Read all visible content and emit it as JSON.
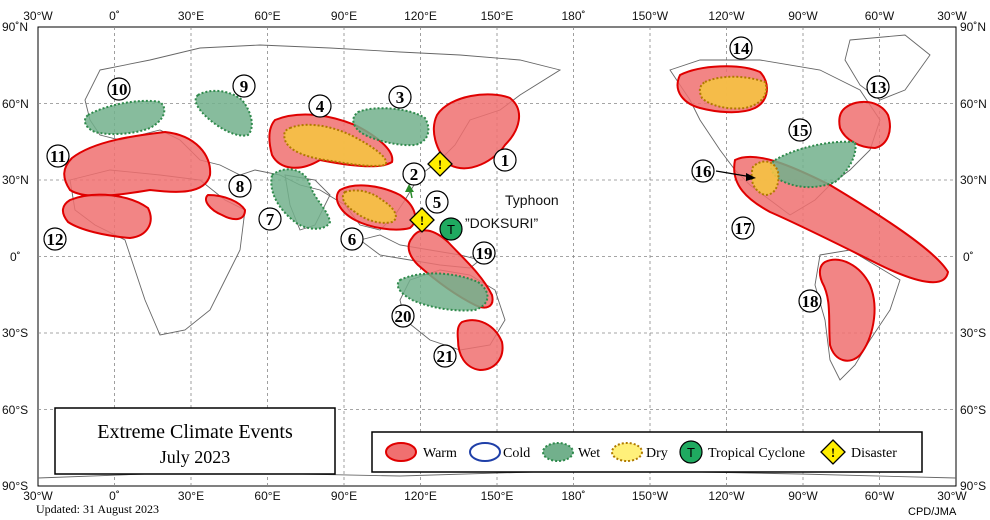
{
  "title": "Extreme Climate Events",
  "subtitle": "July 2023",
  "updated": "Updated: 31 August 2023",
  "credit": "CPD/JMA",
  "typhoon": {
    "label": "Typhoon",
    "name": "”DOKSURI”"
  },
  "legend": {
    "warm": "Warm",
    "cold": "Cold",
    "wet": "Wet",
    "dry": "Dry",
    "tc": "Tropical  Cyclone",
    "disaster": "Disaster",
    "tc_symbol": "T",
    "disaster_symbol": "!"
  },
  "lon_labels": [
    "30°W",
    "0˚",
    "30°E",
    "60°E",
    "90°E",
    "120°E",
    "150°E",
    "180˚",
    "150°W",
    "120°W",
    "90°W",
    "60°W",
    "30°W"
  ],
  "lat_labels": [
    "90˚N",
    "60°N",
    "30°N",
    "0˚",
    "30°S",
    "60°S",
    "90°S"
  ],
  "events": [
    "1",
    "2",
    "3",
    "4",
    "5",
    "6",
    "7",
    "8",
    "9",
    "10",
    "11",
    "12",
    "13",
    "14",
    "15",
    "16",
    "17",
    "18",
    "19",
    "20",
    "21"
  ],
  "colors": {
    "warm_fill": "#f07070",
    "warm_stroke": "#e00000",
    "wet_fill": "#72b08c",
    "wet_stroke": "#2f8a4c",
    "dry_fill": "#f5c242",
    "dry_stroke": "#b07a00",
    "cold_stroke": "#1f3fa8",
    "tc_fill": "#1faa60",
    "disaster_fill": "#ffee00"
  }
}
